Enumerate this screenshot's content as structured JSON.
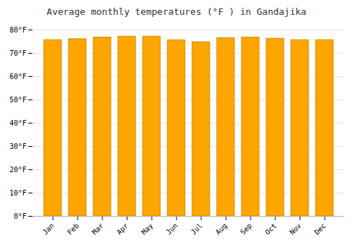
{
  "chart_data": {
    "type": "bar",
    "title": "Average monthly temperatures (°F ) in Gandajika",
    "categories": [
      "Jan",
      "Feb",
      "Mar",
      "Apr",
      "May",
      "Jun",
      "Jul",
      "Aug",
      "Sep",
      "Oct",
      "Nov",
      "Dec"
    ],
    "values": [
      75.7,
      76.1,
      76.8,
      77.2,
      77.2,
      75.6,
      74.8,
      76.5,
      76.8,
      76.3,
      75.7,
      75.7
    ],
    "color": "#FFA500",
    "ylim": [
      0,
      80
    ],
    "yticks": [
      {
        "value": 0,
        "label": "0°F"
      },
      {
        "value": 10,
        "label": "10°F"
      },
      {
        "value": 20,
        "label": "20°F"
      },
      {
        "value": 30,
        "label": "30°F"
      },
      {
        "value": 40,
        "label": "40°F"
      },
      {
        "value": 50,
        "label": "50°F"
      },
      {
        "value": 60,
        "label": "60°F"
      },
      {
        "value": 70,
        "label": "70°F"
      },
      {
        "value": 80,
        "label": "80°F"
      }
    ],
    "grid": true
  }
}
